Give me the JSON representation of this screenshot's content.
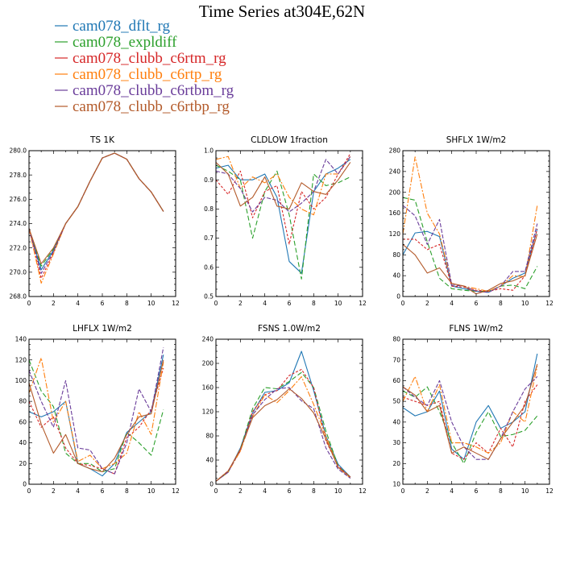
{
  "figure": {
    "title": "Time Series at304E,62N"
  },
  "series_styles": [
    {
      "name": "cam078_dflt_rg",
      "color": "#1f77b4",
      "dash": ""
    },
    {
      "name": "cam078_expldiff",
      "color": "#2ca02c",
      "dash": "6,3"
    },
    {
      "name": "cam078_clubb_c6rtm_rg",
      "color": "#d62728",
      "dash": "3,2"
    },
    {
      "name": "cam078_clubb_c6rtp_rg",
      "color": "#ff7f0e",
      "dash": "7,2,2,2"
    },
    {
      "name": "cam078_clubb_c6rtbm_rg",
      "color": "#6a3d9a",
      "dash": "5,2"
    },
    {
      "name": "cam078_clubb_c6rtbp_rg",
      "color": "#b35a2a",
      "dash": ""
    }
  ],
  "chart_data": [
    {
      "type": "line",
      "title": "TS   1K",
      "xlim": [
        0,
        12
      ],
      "xticks": [
        0,
        2,
        4,
        6,
        8,
        10,
        12
      ],
      "ylim": [
        268,
        280
      ],
      "yticks": [
        268,
        270,
        272,
        274,
        276,
        278,
        280
      ],
      "ytick_labels": [
        "268.0",
        "270.0",
        "272.0",
        "274.0",
        "276.0",
        "278.0",
        "280.0"
      ],
      "x": [
        0,
        1,
        2,
        3,
        4,
        5,
        6,
        7,
        8,
        9,
        10,
        11
      ],
      "series": [
        {
          "name": "cam078_dflt_rg",
          "values": [
            273.6,
            270.2,
            271.8,
            274.0,
            275.4,
            277.5,
            279.4,
            279.8,
            279.3,
            277.7,
            276.6,
            275.0
          ]
        },
        {
          "name": "cam078_expldiff",
          "values": [
            273.6,
            270.5,
            271.9,
            274.0,
            275.4,
            277.5,
            279.4,
            279.8,
            279.3,
            277.7,
            276.6,
            275.0
          ]
        },
        {
          "name": "cam078_clubb_c6rtm_rg",
          "values": [
            273.6,
            269.5,
            271.6,
            274.0,
            275.4,
            277.5,
            279.4,
            279.8,
            279.3,
            277.7,
            276.6,
            275.0
          ]
        },
        {
          "name": "cam078_clubb_c6rtp_rg",
          "values": [
            273.6,
            269.1,
            271.5,
            274.0,
            275.4,
            277.5,
            279.4,
            279.8,
            279.3,
            277.7,
            276.6,
            275.0
          ]
        },
        {
          "name": "cam078_clubb_c6rtbm_rg",
          "values": [
            273.6,
            269.9,
            271.7,
            274.0,
            275.4,
            277.5,
            279.4,
            279.8,
            279.3,
            277.7,
            276.6,
            275.0
          ]
        },
        {
          "name": "cam078_clubb_c6rtbp_rg",
          "values": [
            273.6,
            270.7,
            272.0,
            274.0,
            275.4,
            277.5,
            279.4,
            279.8,
            279.3,
            277.7,
            276.6,
            275.0
          ]
        }
      ]
    },
    {
      "type": "line",
      "title": "CLDLOW   1fraction",
      "xlim": [
        0,
        12
      ],
      "xticks": [
        0,
        2,
        4,
        6,
        8,
        10,
        12
      ],
      "ylim": [
        0.5,
        1.0
      ],
      "yticks": [
        0.5,
        0.6,
        0.7,
        0.8,
        0.9,
        1.0
      ],
      "ytick_labels": [
        "0.5",
        "0.6",
        "0.7",
        "0.8",
        "0.9",
        "1.0"
      ],
      "x": [
        0,
        1,
        2,
        3,
        4,
        5,
        6,
        7,
        8,
        9,
        10,
        11
      ],
      "series": [
        {
          "name": "cam078_dflt_rg",
          "values": [
            0.94,
            0.95,
            0.9,
            0.9,
            0.92,
            0.84,
            0.62,
            0.58,
            0.86,
            0.92,
            0.94,
            0.97
          ]
        },
        {
          "name": "cam078_expldiff",
          "values": [
            0.95,
            0.93,
            0.9,
            0.7,
            0.86,
            0.93,
            0.78,
            0.56,
            0.92,
            0.88,
            0.89,
            0.91
          ]
        },
        {
          "name": "cam078_clubb_c6rtm_rg",
          "values": [
            0.9,
            0.85,
            0.93,
            0.77,
            0.86,
            0.88,
            0.68,
            0.86,
            0.8,
            0.84,
            0.92,
            0.99
          ]
        },
        {
          "name": "cam078_clubb_c6rtp_rg",
          "values": [
            0.97,
            0.98,
            0.87,
            0.91,
            0.89,
            0.92,
            0.84,
            0.8,
            0.78,
            0.92,
            0.92,
            0.98
          ]
        },
        {
          "name": "cam078_clubb_c6rtbm_rg",
          "values": [
            0.93,
            0.92,
            0.87,
            0.79,
            0.84,
            0.83,
            0.79,
            0.82,
            0.86,
            0.97,
            0.92,
            0.98
          ]
        },
        {
          "name": "cam078_clubb_c6rtbp_rg",
          "values": [
            0.96,
            0.92,
            0.81,
            0.84,
            0.91,
            0.81,
            0.8,
            0.89,
            0.86,
            0.85,
            0.9,
            0.96
          ]
        }
      ]
    },
    {
      "type": "line",
      "title": "SHFLX   1W/m2",
      "xlim": [
        0,
        12
      ],
      "xticks": [
        0,
        2,
        4,
        6,
        8,
        10,
        12
      ],
      "ylim": [
        0,
        280
      ],
      "yticks": [
        0,
        40,
        80,
        120,
        160,
        200,
        240,
        280
      ],
      "ytick_labels": [
        "0",
        "40",
        "80",
        "120",
        "160",
        "200",
        "240",
        "280"
      ],
      "x": [
        0,
        1,
        2,
        3,
        4,
        5,
        6,
        7,
        8,
        9,
        10,
        11
      ],
      "series": [
        {
          "name": "cam078_dflt_rg",
          "values": [
            80,
            122,
            125,
            115,
            20,
            15,
            10,
            8,
            20,
            35,
            45,
            130
          ]
        },
        {
          "name": "cam078_expldiff",
          "values": [
            190,
            185,
            105,
            35,
            15,
            12,
            10,
            10,
            20,
            22,
            15,
            58
          ]
        },
        {
          "name": "cam078_clubb_c6rtm_rg",
          "values": [
            110,
            110,
            90,
            100,
            20,
            18,
            12,
            10,
            15,
            12,
            40,
            130
          ]
        },
        {
          "name": "cam078_clubb_c6rtp_rg",
          "values": [
            120,
            268,
            160,
            120,
            25,
            20,
            15,
            10,
            20,
            40,
            38,
            175
          ]
        },
        {
          "name": "cam078_clubb_c6rtbm_rg",
          "values": [
            175,
            155,
            100,
            148,
            22,
            20,
            10,
            8,
            20,
            48,
            48,
            140
          ]
        },
        {
          "name": "cam078_clubb_c6rtbp_rg",
          "values": [
            100,
            80,
            45,
            55,
            25,
            20,
            5,
            12,
            25,
            30,
            40,
            120
          ]
        }
      ]
    },
    {
      "type": "line",
      "title": "LHFLX   1W/m2",
      "xlim": [
        0,
        12
      ],
      "xticks": [
        0,
        2,
        4,
        6,
        8,
        10,
        12
      ],
      "ylim": [
        0,
        140
      ],
      "yticks": [
        0,
        20,
        40,
        60,
        80,
        100,
        120,
        140
      ],
      "ytick_labels": [
        "0",
        "20",
        "40",
        "60",
        "80",
        "100",
        "120",
        "140"
      ],
      "x": [
        0,
        1,
        2,
        3,
        4,
        5,
        6,
        7,
        8,
        9,
        10,
        11
      ],
      "series": [
        {
          "name": "cam078_dflt_rg",
          "values": [
            70,
            65,
            70,
            80,
            20,
            15,
            8,
            20,
            50,
            60,
            70,
            125
          ]
        },
        {
          "name": "cam078_expldiff",
          "values": [
            120,
            90,
            75,
            30,
            20,
            20,
            12,
            15,
            50,
            40,
            28,
            72
          ]
        },
        {
          "name": "cam078_clubb_c6rtm_rg",
          "values": [
            80,
            55,
            65,
            35,
            20,
            18,
            15,
            10,
            45,
            55,
            72,
            112
          ]
        },
        {
          "name": "cam078_clubb_c6rtp_rg",
          "values": [
            88,
            122,
            60,
            80,
            22,
            28,
            15,
            20,
            30,
            70,
            48,
            118
          ]
        },
        {
          "name": "cam078_clubb_c6rtbm_rg",
          "values": [
            110,
            80,
            55,
            100,
            35,
            33,
            15,
            10,
            40,
            92,
            70,
            132
          ]
        },
        {
          "name": "cam078_clubb_c6rtbp_rg",
          "values": [
            98,
            58,
            30,
            48,
            20,
            15,
            12,
            25,
            48,
            65,
            68,
            120
          ]
        }
      ]
    },
    {
      "type": "line",
      "title": "FSNS   1.0W/m2",
      "xlim": [
        0,
        12
      ],
      "xticks": [
        0,
        2,
        4,
        6,
        8,
        10,
        12
      ],
      "ylim": [
        0,
        240
      ],
      "yticks": [
        0,
        40,
        80,
        120,
        160,
        200,
        240
      ],
      "ytick_labels": [
        "0",
        "40",
        "80",
        "120",
        "160",
        "200",
        "240"
      ],
      "x": [
        0,
        1,
        2,
        3,
        4,
        5,
        6,
        7,
        8,
        9,
        10,
        11
      ],
      "series": [
        {
          "name": "cam078_dflt_rg",
          "values": [
            5,
            20,
            60,
            118,
            152,
            155,
            168,
            220,
            155,
            80,
            33,
            12
          ]
        },
        {
          "name": "cam078_expldiff",
          "values": [
            5,
            20,
            58,
            125,
            160,
            158,
            170,
            185,
            160,
            88,
            30,
            12
          ]
        },
        {
          "name": "cam078_clubb_c6rtm_rg",
          "values": [
            5,
            22,
            55,
            120,
            148,
            155,
            180,
            190,
            160,
            72,
            30,
            12
          ]
        },
        {
          "name": "cam078_clubb_c6rtp_rg",
          "values": [
            5,
            20,
            55,
            112,
            148,
            135,
            155,
            178,
            132,
            80,
            28,
            10
          ]
        },
        {
          "name": "cam078_clubb_c6rtbm_rg",
          "values": [
            5,
            20,
            58,
            115,
            140,
            158,
            160,
            138,
            125,
            60,
            25,
            10
          ]
        },
        {
          "name": "cam078_clubb_c6rtbp_rg",
          "values": [
            5,
            22,
            58,
            110,
            130,
            140,
            158,
            142,
            118,
            75,
            28,
            12
          ]
        }
      ]
    },
    {
      "type": "line",
      "title": "FLNS   1W/m2",
      "xlim": [
        0,
        12
      ],
      "xticks": [
        0,
        2,
        4,
        6,
        8,
        10,
        12
      ],
      "ylim": [
        10,
        80
      ],
      "yticks": [
        10,
        20,
        30,
        40,
        50,
        60,
        70,
        80
      ],
      "ytick_labels": [
        "10",
        "20",
        "30",
        "40",
        "50",
        "60",
        "70",
        "80"
      ],
      "x": [
        0,
        1,
        2,
        3,
        4,
        5,
        6,
        7,
        8,
        9,
        10,
        11
      ],
      "series": [
        {
          "name": "cam078_dflt_rg",
          "values": [
            47,
            43,
            45,
            55,
            27,
            22,
            40,
            48,
            37,
            40,
            45,
            73
          ]
        },
        {
          "name": "cam078_expldiff",
          "values": [
            55,
            52,
            57,
            45,
            30,
            20,
            35,
            45,
            33,
            34,
            36,
            43
          ]
        },
        {
          "name": "cam078_clubb_c6rtm_rg",
          "values": [
            52,
            50,
            48,
            50,
            25,
            22,
            30,
            25,
            37,
            28,
            50,
            58
          ]
        },
        {
          "name": "cam078_clubb_c6rtp_rg",
          "values": [
            50,
            62,
            45,
            58,
            30,
            30,
            28,
            25,
            30,
            45,
            40,
            67
          ]
        },
        {
          "name": "cam078_clubb_c6rtbm_rg",
          "values": [
            57,
            52,
            48,
            60,
            40,
            28,
            22,
            22,
            32,
            45,
            56,
            62
          ]
        },
        {
          "name": "cam078_clubb_c6rtbp_rg",
          "values": [
            57,
            53,
            45,
            48,
            25,
            28,
            25,
            22,
            32,
            40,
            48,
            68
          ]
        }
      ]
    }
  ]
}
